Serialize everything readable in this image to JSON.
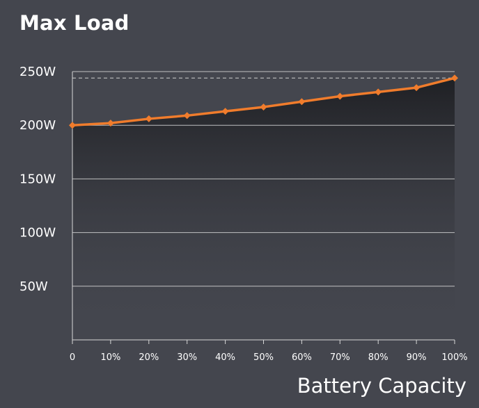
{
  "chart_data": {
    "type": "line",
    "title": "Max Load",
    "xlabel": "Battery Capacity",
    "ylabel": "",
    "categories": [
      "0",
      "10%",
      "20%",
      "30%",
      "40%",
      "50%",
      "60%",
      "70%",
      "80%",
      "90%",
      "100%"
    ],
    "y_ticks": [
      "50W",
      "100W",
      "150W",
      "200W",
      "250W"
    ],
    "ylim": [
      0,
      250
    ],
    "grid": true,
    "series": [
      {
        "values": [
          200,
          202,
          206,
          209,
          213,
          217,
          222,
          227,
          231,
          235,
          244
        ]
      }
    ],
    "reference_line": {
      "value": 244,
      "style": "dashed"
    },
    "colors": {
      "line": "#f07c2c",
      "grid": "#d8d8d8",
      "background": "#44464e"
    }
  }
}
